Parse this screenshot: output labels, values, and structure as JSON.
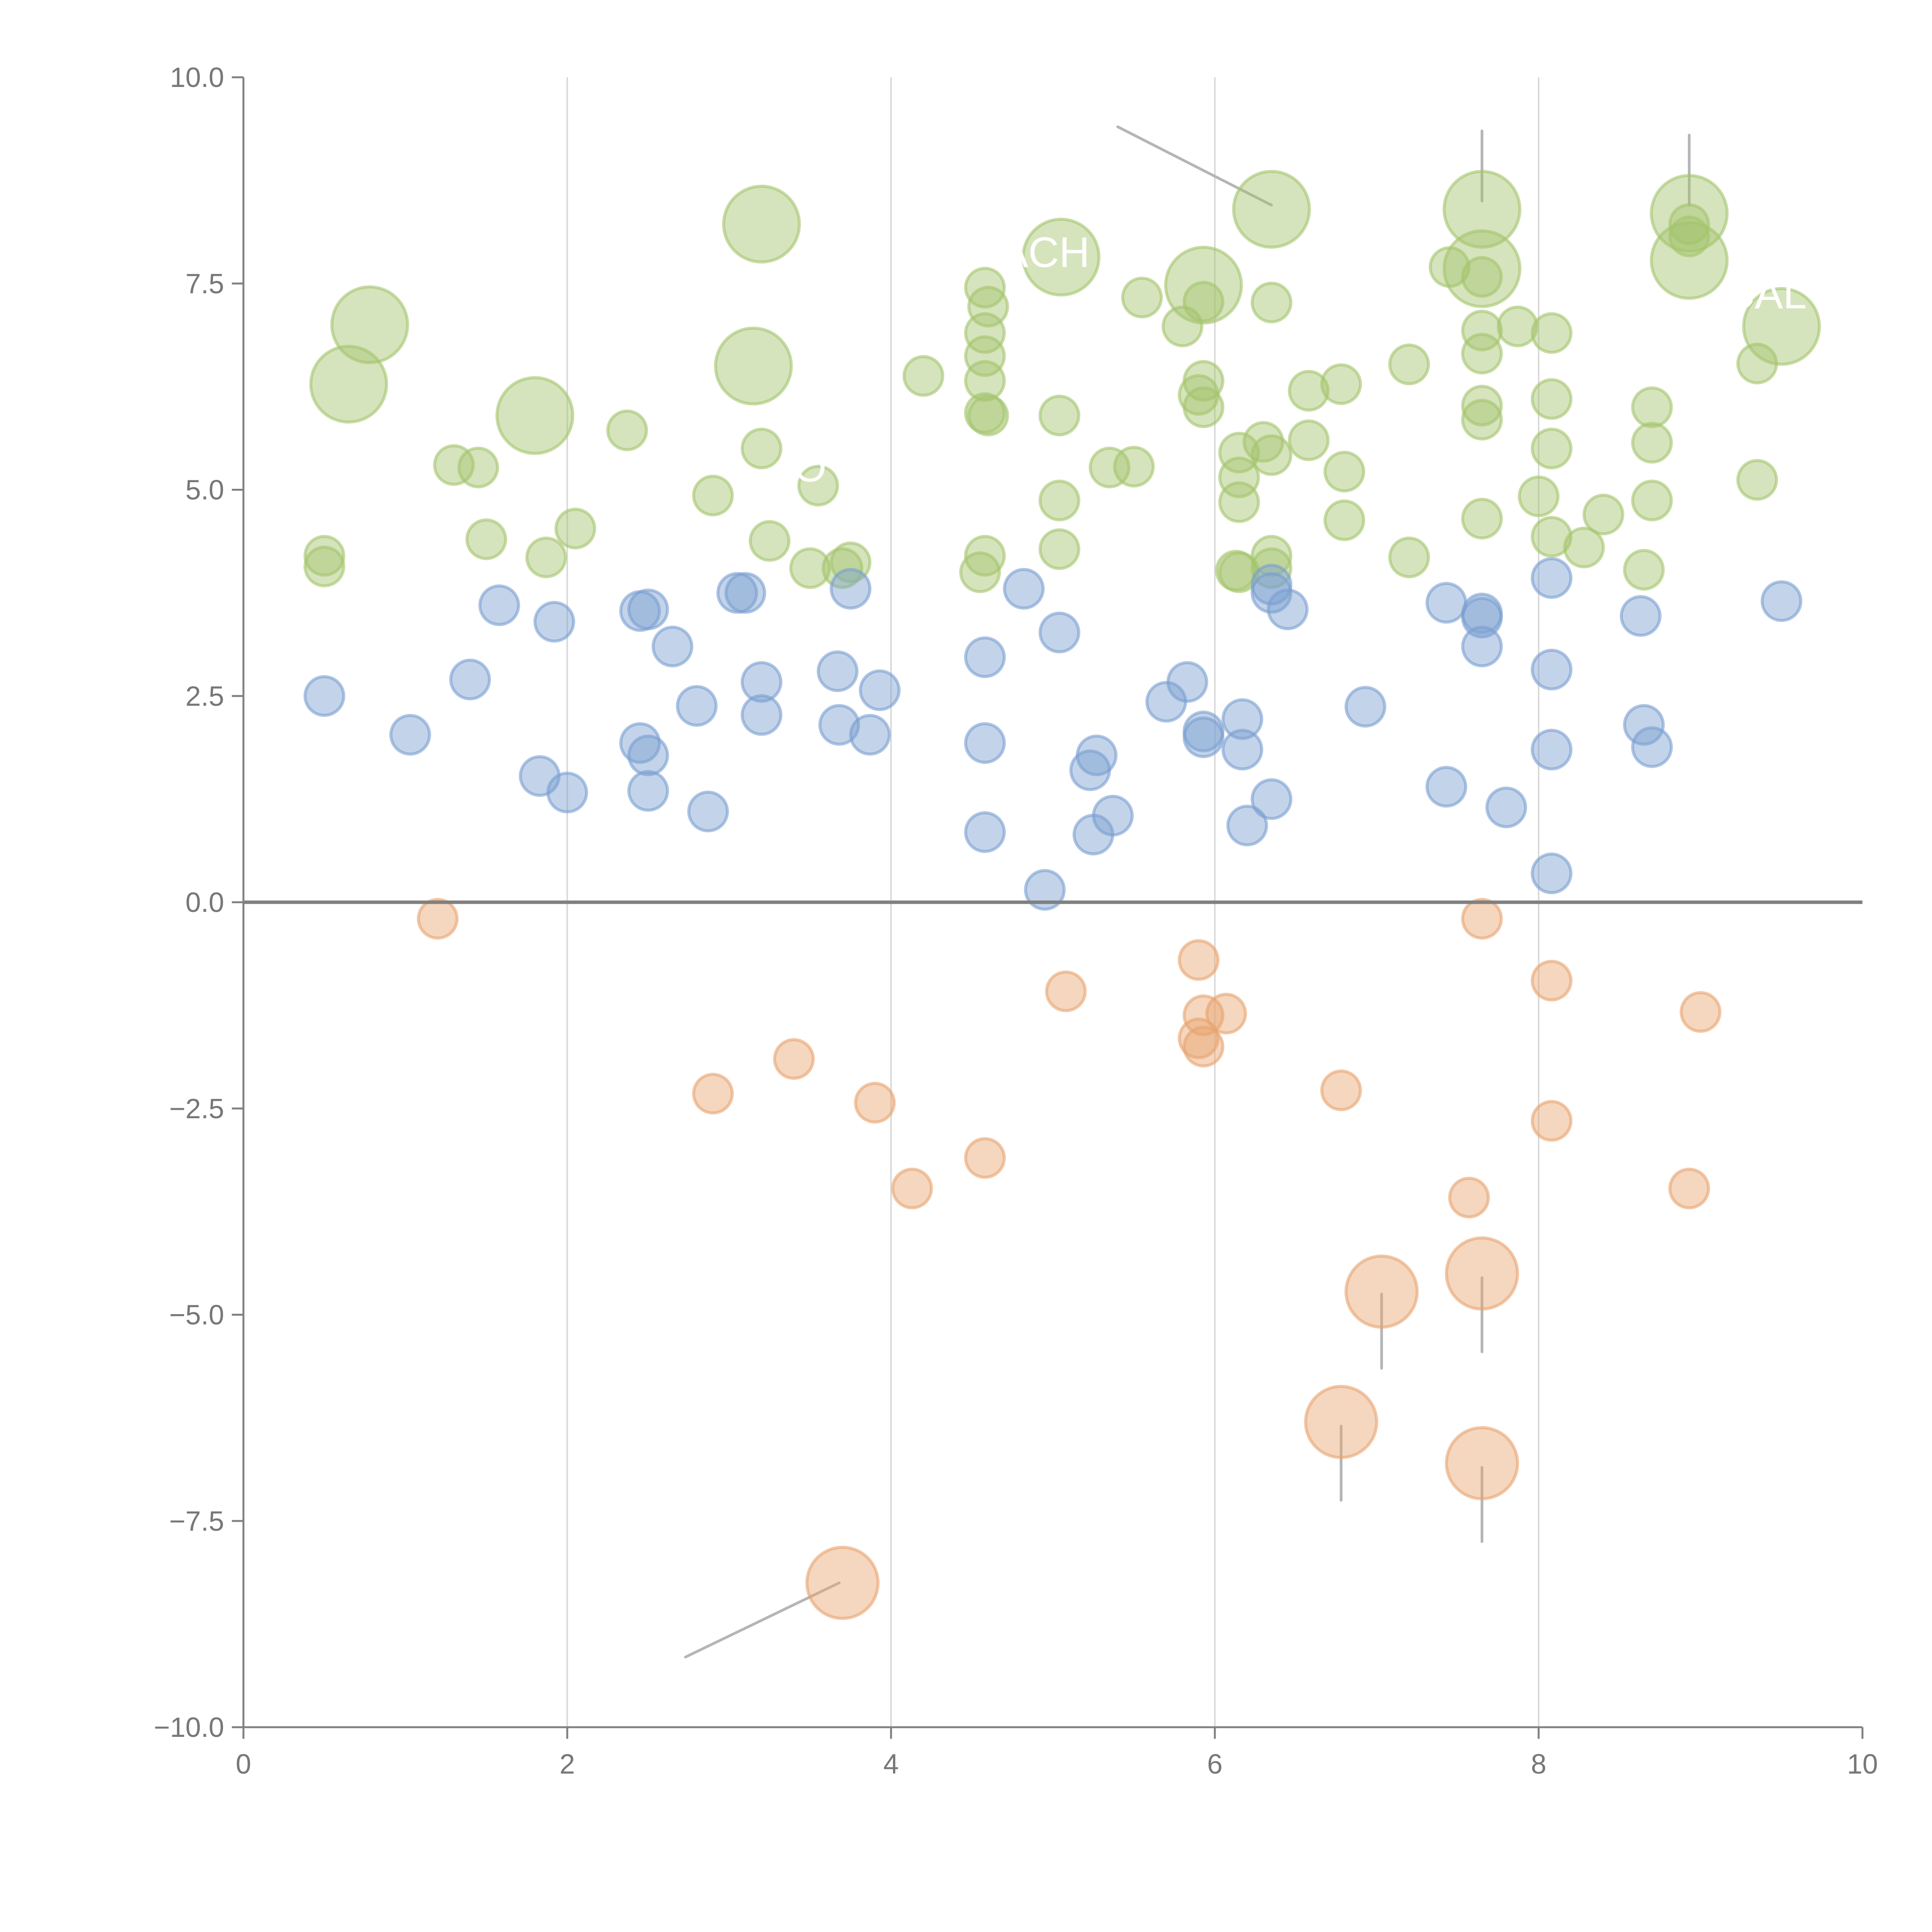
{
  "chart_data": {
    "type": "scatter",
    "subtype": "bubble",
    "title": "",
    "xlabel": "",
    "ylabel": "",
    "xlim": [
      0,
      10
    ],
    "ylim": [
      -10,
      10
    ],
    "x_ticks": [
      "0",
      "2",
      "4",
      "6",
      "8",
      "10"
    ],
    "y_ticks": [
      "10.0",
      "7.5",
      "5.0",
      "2.5",
      "0.0",
      "−2.5",
      "−5.0",
      "−7.5",
      "−10.0"
    ],
    "x_tick_values": [
      0,
      2,
      4,
      6,
      8,
      10
    ],
    "y_tick_values": [
      10,
      7.5,
      5,
      2.5,
      0,
      -2.5,
      -5,
      -7.5,
      -10
    ],
    "grid": "vertical",
    "zero_line": true,
    "legend": "none",
    "colors": {
      "green": "#a3c46d",
      "blue": "#7a9fd1",
      "orange": "#e8a36f",
      "axis": "#808080",
      "grid": "#d9d9d9"
    },
    "annotations": [
      {
        "text": "ACH",
        "x": 4.95,
        "y": 7.7
      },
      {
        "text": "CAL",
        "x": 9.4,
        "y": 7.2
      },
      {
        "text": "O",
        "x": 3.5,
        "y": 5.1
      }
    ],
    "series": [
      {
        "name": "green",
        "color": "#a3c46d",
        "points": [
          {
            "x": 0.78,
            "y": 7.0,
            "size": 3
          },
          {
            "x": 0.65,
            "y": 6.28,
            "size": 3
          },
          {
            "x": 1.8,
            "y": 5.9,
            "size": 3
          },
          {
            "x": 3.2,
            "y": 8.22,
            "size": 3
          },
          {
            "x": 3.15,
            "y": 6.5,
            "size": 3
          },
          {
            "x": 5.05,
            "y": 7.82,
            "size": 3
          },
          {
            "x": 5.93,
            "y": 7.48,
            "size": 3
          },
          {
            "x": 6.35,
            "y": 8.4,
            "size": 3
          },
          {
            "x": 7.65,
            "y": 8.4,
            "size": 3
          },
          {
            "x": 7.65,
            "y": 7.68,
            "size": 3
          },
          {
            "x": 8.93,
            "y": 8.35,
            "size": 3
          },
          {
            "x": 8.93,
            "y": 7.78,
            "size": 3
          },
          {
            "x": 9.5,
            "y": 6.98,
            "size": 3
          },
          {
            "x": 0.5,
            "y": 4.2,
            "size": 1
          },
          {
            "x": 0.5,
            "y": 4.07,
            "size": 1
          },
          {
            "x": 1.3,
            "y": 5.3,
            "size": 1
          },
          {
            "x": 1.45,
            "y": 5.27,
            "size": 1
          },
          {
            "x": 1.5,
            "y": 4.4,
            "size": 1
          },
          {
            "x": 1.87,
            "y": 4.18,
            "size": 1
          },
          {
            "x": 2.05,
            "y": 4.53,
            "size": 1
          },
          {
            "x": 2.37,
            "y": 5.72,
            "size": 1
          },
          {
            "x": 2.9,
            "y": 4.93,
            "size": 1
          },
          {
            "x": 3.2,
            "y": 5.5,
            "size": 1
          },
          {
            "x": 3.25,
            "y": 4.38,
            "size": 1
          },
          {
            "x": 3.5,
            "y": 4.05,
            "size": 1
          },
          {
            "x": 3.55,
            "y": 5.05,
            "size": 1
          },
          {
            "x": 3.7,
            "y": 4.05,
            "size": 1
          },
          {
            "x": 3.75,
            "y": 4.12,
            "size": 1
          },
          {
            "x": 4.2,
            "y": 6.38,
            "size": 1
          },
          {
            "x": 4.58,
            "y": 7.45,
            "size": 1
          },
          {
            "x": 4.6,
            "y": 7.22,
            "size": 1
          },
          {
            "x": 4.58,
            "y": 6.9,
            "size": 1
          },
          {
            "x": 4.58,
            "y": 6.62,
            "size": 1
          },
          {
            "x": 4.58,
            "y": 6.32,
            "size": 1
          },
          {
            "x": 4.58,
            "y": 5.93,
            "size": 1
          },
          {
            "x": 4.6,
            "y": 5.9,
            "size": 1
          },
          {
            "x": 4.58,
            "y": 4.2,
            "size": 1
          },
          {
            "x": 4.55,
            "y": 4.0,
            "size": 1
          },
          {
            "x": 5.04,
            "y": 5.9,
            "size": 1
          },
          {
            "x": 5.04,
            "y": 4.87,
            "size": 1
          },
          {
            "x": 5.04,
            "y": 4.28,
            "size": 1
          },
          {
            "x": 5.35,
            "y": 5.27,
            "size": 1
          },
          {
            "x": 5.5,
            "y": 5.28,
            "size": 1
          },
          {
            "x": 5.55,
            "y": 7.33,
            "size": 1
          },
          {
            "x": 5.8,
            "y": 6.98,
            "size": 1
          },
          {
            "x": 5.93,
            "y": 7.28,
            "size": 1
          },
          {
            "x": 5.93,
            "y": 6.32,
            "size": 1
          },
          {
            "x": 5.9,
            "y": 6.15,
            "size": 1
          },
          {
            "x": 5.93,
            "y": 6.0,
            "size": 1
          },
          {
            "x": 6.15,
            "y": 5.45,
            "size": 1
          },
          {
            "x": 6.15,
            "y": 5.15,
            "size": 1
          },
          {
            "x": 6.15,
            "y": 4.85,
            "size": 1
          },
          {
            "x": 6.13,
            "y": 4.02,
            "size": 1
          },
          {
            "x": 6.15,
            "y": 4.0,
            "size": 1
          },
          {
            "x": 6.3,
            "y": 5.58,
            "size": 1
          },
          {
            "x": 6.35,
            "y": 5.42,
            "size": 1
          },
          {
            "x": 6.35,
            "y": 4.2,
            "size": 1
          },
          {
            "x": 6.35,
            "y": 4.05,
            "size": 1
          },
          {
            "x": 6.35,
            "y": 7.27,
            "size": 1
          },
          {
            "x": 6.58,
            "y": 6.2,
            "size": 1
          },
          {
            "x": 6.58,
            "y": 5.6,
            "size": 1
          },
          {
            "x": 6.78,
            "y": 6.28,
            "size": 1
          },
          {
            "x": 6.8,
            "y": 5.22,
            "size": 1
          },
          {
            "x": 6.8,
            "y": 4.63,
            "size": 1
          },
          {
            "x": 7.2,
            "y": 6.52,
            "size": 1
          },
          {
            "x": 7.2,
            "y": 4.18,
            "size": 1
          },
          {
            "x": 7.45,
            "y": 7.7,
            "size": 1
          },
          {
            "x": 7.65,
            "y": 7.58,
            "size": 1
          },
          {
            "x": 7.65,
            "y": 6.93,
            "size": 1
          },
          {
            "x": 7.65,
            "y": 6.65,
            "size": 1
          },
          {
            "x": 7.65,
            "y": 6.02,
            "size": 1
          },
          {
            "x": 7.65,
            "y": 5.85,
            "size": 1
          },
          {
            "x": 7.65,
            "y": 4.65,
            "size": 1
          },
          {
            "x": 7.87,
            "y": 6.98,
            "size": 1
          },
          {
            "x": 8.0,
            "y": 4.92,
            "size": 1
          },
          {
            "x": 8.08,
            "y": 6.9,
            "size": 1
          },
          {
            "x": 8.08,
            "y": 6.1,
            "size": 1
          },
          {
            "x": 8.08,
            "y": 5.5,
            "size": 1
          },
          {
            "x": 8.08,
            "y": 4.43,
            "size": 1
          },
          {
            "x": 8.28,
            "y": 4.3,
            "size": 1
          },
          {
            "x": 8.4,
            "y": 4.7,
            "size": 1
          },
          {
            "x": 8.65,
            "y": 4.03,
            "size": 1
          },
          {
            "x": 8.7,
            "y": 6.0,
            "size": 1
          },
          {
            "x": 8.7,
            "y": 5.57,
            "size": 1
          },
          {
            "x": 8.7,
            "y": 4.87,
            "size": 1
          },
          {
            "x": 8.93,
            "y": 8.22,
            "size": 1
          },
          {
            "x": 8.93,
            "y": 8.07,
            "size": 1
          },
          {
            "x": 9.35,
            "y": 6.53,
            "size": 1
          },
          {
            "x": 9.35,
            "y": 5.12,
            "size": 1
          }
        ]
      },
      {
        "name": "blue",
        "color": "#7a9fd1",
        "points": [
          {
            "x": 0.5,
            "y": 2.5,
            "size": 1
          },
          {
            "x": 1.03,
            "y": 2.03,
            "size": 1
          },
          {
            "x": 1.4,
            "y": 2.7,
            "size": 1
          },
          {
            "x": 1.58,
            "y": 3.6,
            "size": 1
          },
          {
            "x": 1.83,
            "y": 1.53,
            "size": 1
          },
          {
            "x": 1.92,
            "y": 3.4,
            "size": 1
          },
          {
            "x": 2.0,
            "y": 1.33,
            "size": 1
          },
          {
            "x": 2.45,
            "y": 3.53,
            "size": 1
          },
          {
            "x": 2.5,
            "y": 3.55,
            "size": 1
          },
          {
            "x": 2.45,
            "y": 1.93,
            "size": 1
          },
          {
            "x": 2.5,
            "y": 1.78,
            "size": 1
          },
          {
            "x": 2.5,
            "y": 1.35,
            "size": 1
          },
          {
            "x": 2.65,
            "y": 3.1,
            "size": 1
          },
          {
            "x": 2.8,
            "y": 2.38,
            "size": 1
          },
          {
            "x": 2.87,
            "y": 1.1,
            "size": 1
          },
          {
            "x": 3.05,
            "y": 3.75,
            "size": 1
          },
          {
            "x": 3.1,
            "y": 3.75,
            "size": 1
          },
          {
            "x": 3.2,
            "y": 2.67,
            "size": 1
          },
          {
            "x": 3.2,
            "y": 2.27,
            "size": 1
          },
          {
            "x": 3.67,
            "y": 2.8,
            "size": 1
          },
          {
            "x": 3.68,
            "y": 2.15,
            "size": 1
          },
          {
            "x": 3.75,
            "y": 3.8,
            "size": 1
          },
          {
            "x": 3.87,
            "y": 2.03,
            "size": 1
          },
          {
            "x": 3.93,
            "y": 2.57,
            "size": 1
          },
          {
            "x": 4.58,
            "y": 2.97,
            "size": 1
          },
          {
            "x": 4.58,
            "y": 1.93,
            "size": 1
          },
          {
            "x": 4.58,
            "y": 0.85,
            "size": 1
          },
          {
            "x": 4.82,
            "y": 3.8,
            "size": 1
          },
          {
            "x": 4.95,
            "y": 0.15,
            "size": 1
          },
          {
            "x": 5.04,
            "y": 3.27,
            "size": 1
          },
          {
            "x": 5.23,
            "y": 1.6,
            "size": 1
          },
          {
            "x": 5.27,
            "y": 1.78,
            "size": 1
          },
          {
            "x": 5.25,
            "y": 0.82,
            "size": 1
          },
          {
            "x": 5.37,
            "y": 1.05,
            "size": 1
          },
          {
            "x": 5.7,
            "y": 2.43,
            "size": 1
          },
          {
            "x": 5.83,
            "y": 2.67,
            "size": 1
          },
          {
            "x": 5.93,
            "y": 2.07,
            "size": 1
          },
          {
            "x": 5.93,
            "y": 2.0,
            "size": 1
          },
          {
            "x": 6.17,
            "y": 2.22,
            "size": 1
          },
          {
            "x": 6.17,
            "y": 1.85,
            "size": 1
          },
          {
            "x": 6.2,
            "y": 0.93,
            "size": 1
          },
          {
            "x": 6.35,
            "y": 3.85,
            "size": 1
          },
          {
            "x": 6.35,
            "y": 3.75,
            "size": 1
          },
          {
            "x": 6.35,
            "y": 1.25,
            "size": 1
          },
          {
            "x": 6.45,
            "y": 3.55,
            "size": 1
          },
          {
            "x": 6.93,
            "y": 2.37,
            "size": 1
          },
          {
            "x": 7.43,
            "y": 3.63,
            "size": 1
          },
          {
            "x": 7.43,
            "y": 1.4,
            "size": 1
          },
          {
            "x": 7.65,
            "y": 3.5,
            "size": 1
          },
          {
            "x": 7.65,
            "y": 3.45,
            "size": 1
          },
          {
            "x": 7.65,
            "y": 3.1,
            "size": 1
          },
          {
            "x": 7.8,
            "y": 1.15,
            "size": 1
          },
          {
            "x": 8.08,
            "y": 3.93,
            "size": 1
          },
          {
            "x": 8.08,
            "y": 2.82,
            "size": 1
          },
          {
            "x": 8.08,
            "y": 1.85,
            "size": 1
          },
          {
            "x": 8.08,
            "y": 0.35,
            "size": 1
          },
          {
            "x": 8.63,
            "y": 3.47,
            "size": 1
          },
          {
            "x": 8.65,
            "y": 2.15,
            "size": 1
          },
          {
            "x": 8.7,
            "y": 1.88,
            "size": 1
          },
          {
            "x": 9.5,
            "y": 3.65,
            "size": 1
          }
        ]
      },
      {
        "name": "orange",
        "color": "#e8a36f",
        "points": [
          {
            "x": 1.2,
            "y": -0.2,
            "size": 1
          },
          {
            "x": 2.9,
            "y": -2.32,
            "size": 1
          },
          {
            "x": 3.4,
            "y": -1.9,
            "size": 1
          },
          {
            "x": 3.9,
            "y": -2.43,
            "size": 1
          },
          {
            "x": 4.13,
            "y": -3.47,
            "size": 1
          },
          {
            "x": 4.58,
            "y": -3.1,
            "size": 1
          },
          {
            "x": 5.08,
            "y": -1.08,
            "size": 1
          },
          {
            "x": 5.9,
            "y": -0.7,
            "size": 1
          },
          {
            "x": 5.93,
            "y": -1.37,
            "size": 1
          },
          {
            "x": 6.07,
            "y": -1.35,
            "size": 1
          },
          {
            "x": 5.9,
            "y": -1.65,
            "size": 1
          },
          {
            "x": 5.93,
            "y": -1.75,
            "size": 1
          },
          {
            "x": 6.78,
            "y": -2.28,
            "size": 1
          },
          {
            "x": 7.57,
            "y": -3.58,
            "size": 1
          },
          {
            "x": 7.65,
            "y": -0.2,
            "size": 1
          },
          {
            "x": 8.08,
            "y": -0.95,
            "size": 1
          },
          {
            "x": 8.08,
            "y": -2.65,
            "size": 1
          },
          {
            "x": 8.93,
            "y": -3.47,
            "size": 1
          },
          {
            "x": 9.0,
            "y": -1.33,
            "size": 1
          },
          {
            "x": 3.7,
            "y": -8.25,
            "size": 2
          },
          {
            "x": 7.03,
            "y": -4.72,
            "size": 2
          },
          {
            "x": 7.65,
            "y": -4.5,
            "size": 2
          },
          {
            "x": 6.78,
            "y": -6.3,
            "size": 2
          },
          {
            "x": 7.65,
            "y": -6.8,
            "size": 2
          }
        ]
      }
    ],
    "leader_lines": [
      {
        "from": [
          5.4,
          9.4
        ],
        "to": [
          6.35,
          8.45
        ]
      },
      {
        "from": [
          7.65,
          9.35
        ],
        "to": [
          7.65,
          8.5
        ]
      },
      {
        "from": [
          8.93,
          9.3
        ],
        "to": [
          8.93,
          8.45
        ]
      },
      {
        "from": [
          7.03,
          -4.75
        ],
        "to": [
          7.03,
          -5.65
        ]
      },
      {
        "from": [
          7.65,
          -4.55
        ],
        "to": [
          7.65,
          -5.45
        ]
      },
      {
        "from": [
          6.78,
          -6.35
        ],
        "to": [
          6.78,
          -7.25
        ]
      },
      {
        "from": [
          7.65,
          -6.85
        ],
        "to": [
          7.65,
          -7.75
        ]
      },
      {
        "from": [
          2.73,
          -9.15
        ],
        "to": [
          3.68,
          -8.25
        ]
      }
    ]
  }
}
